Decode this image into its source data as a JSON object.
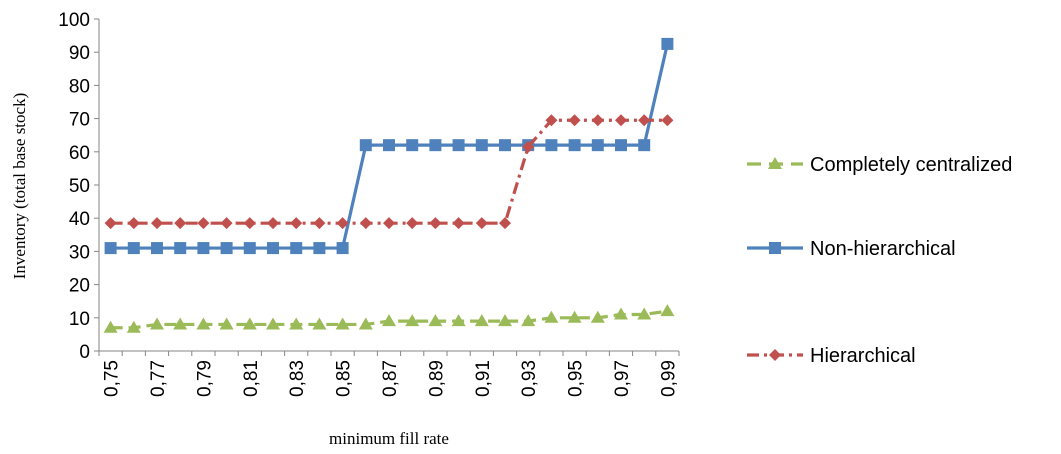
{
  "chart_data": {
    "type": "line",
    "xlabel": "minimum fill rate",
    "ylabel": "Inventory (total base stock)",
    "ylim": [
      0,
      100
    ],
    "yticks": [
      "0",
      "10",
      "20",
      "30",
      "40",
      "50",
      "60",
      "70",
      "80",
      "90",
      "100"
    ],
    "grid": false,
    "legend_position": "right",
    "categories": [
      "0,75",
      "0,76",
      "0,77",
      "0,78",
      "0,79",
      "0,80",
      "0,81",
      "0,82",
      "0,83",
      "0,84",
      "0,85",
      "0,86",
      "0,87",
      "0,88",
      "0,89",
      "0,90",
      "0,91",
      "0,92",
      "0,93",
      "0,94",
      "0,95",
      "0,96",
      "0,97",
      "0,98",
      "0,99"
    ],
    "tick_labels": [
      "0,75",
      "0,77",
      "0,79",
      "0,81",
      "0,83",
      "0,85",
      "0,87",
      "0,89",
      "0,91",
      "0,93",
      "0,95",
      "0,97",
      "0,99"
    ],
    "series": [
      {
        "name": "Completely centralized",
        "color": "#9BBB59",
        "marker": "triangle",
        "line_style": "dashed",
        "values": [
          7,
          7,
          8,
          8,
          8,
          8,
          8,
          8,
          8,
          8,
          8,
          8,
          9,
          9,
          9,
          9,
          9,
          9,
          9,
          10,
          10,
          10,
          11,
          11,
          12
        ]
      },
      {
        "name": "Non-hierarchical",
        "color": "#4F81BD",
        "marker": "square",
        "line_style": "solid",
        "values": [
          31,
          31,
          31,
          31,
          31,
          31,
          31,
          31,
          31,
          31,
          31,
          62,
          62,
          62,
          62,
          62,
          62,
          62,
          62,
          62,
          62,
          62,
          62,
          62,
          92.5
        ]
      },
      {
        "name": "Hierarchical",
        "color": "#C0504D",
        "marker": "diamond",
        "line_style": "dash-dot",
        "values": [
          38.5,
          38.5,
          38.5,
          38.5,
          38.5,
          38.5,
          38.5,
          38.5,
          38.5,
          38.5,
          38.5,
          38.5,
          38.5,
          38.5,
          38.5,
          38.5,
          38.5,
          38.5,
          61.5,
          69.5,
          69.5,
          69.5,
          69.5,
          69.5,
          69.5
        ]
      }
    ]
  }
}
